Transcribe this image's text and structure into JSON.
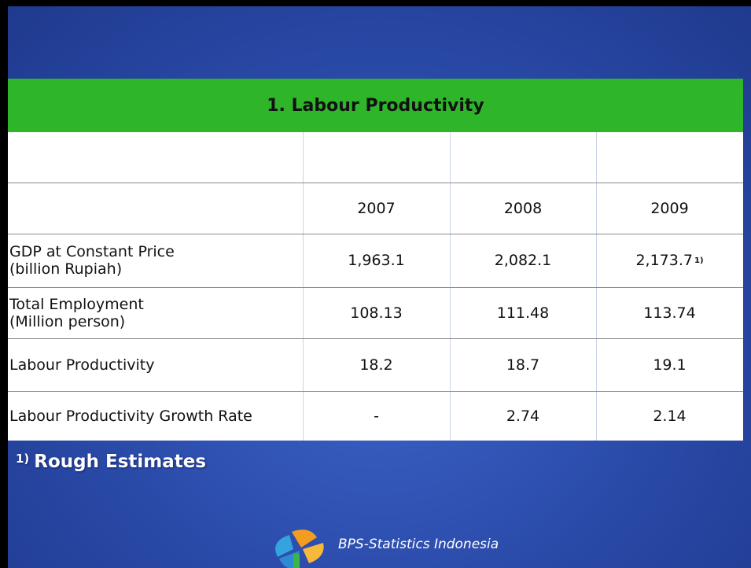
{
  "title": "1. Labour Productivity",
  "table": {
    "columns": [
      "2007",
      "2008",
      "2009"
    ],
    "rows": [
      {
        "label": [
          "GDP at Constant Price",
          "(billion Rupiah)"
        ],
        "values": [
          {
            "text": "1,963.1"
          },
          {
            "text": "2,082.1"
          },
          {
            "text": "2,173.7",
            "note": "1)"
          }
        ]
      },
      {
        "label": [
          "Total Employment",
          "(Million person)"
        ],
        "values": [
          {
            "text": "108.13"
          },
          {
            "text": "111.48"
          },
          {
            "text": "113.74"
          }
        ]
      },
      {
        "label": [
          "Labour Productivity"
        ],
        "values": [
          {
            "text": "18.2"
          },
          {
            "text": "18.7"
          },
          {
            "text": "19.1"
          }
        ]
      },
      {
        "label": [
          "Labour Productivity Growth Rate"
        ],
        "values": [
          {
            "text": "-"
          },
          {
            "text": "2.74"
          },
          {
            "text": "2.14"
          }
        ]
      }
    ]
  },
  "footnote": {
    "marker": "1)",
    "text": "Rough Estimates"
  },
  "footer": "BPS-Statistics Indonesia"
}
